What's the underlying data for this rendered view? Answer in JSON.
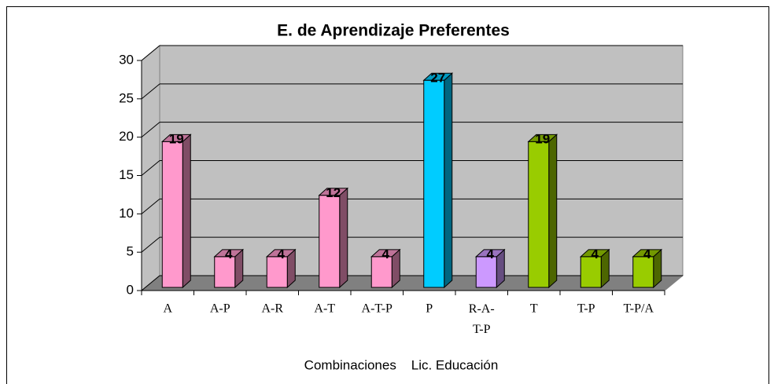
{
  "chart_data": {
    "type": "bar3d",
    "title": "E. de Aprendizaje Preferentes",
    "x_label": "Combinaciones    Lic. Educación",
    "categories": [
      "A",
      "A-P",
      "A-R",
      "A-T",
      "A-T-P",
      "P",
      "R-A-T-P",
      "T",
      "T-P",
      "T-P/A"
    ],
    "values": [
      19,
      4,
      4,
      12,
      4,
      27,
      4,
      19,
      4,
      4
    ],
    "colors": [
      "#ff99cc",
      "#ff99cc",
      "#ff99cc",
      "#ff99cc",
      "#ff99cc",
      "#00ccff",
      "#cc99ff",
      "#99cc00",
      "#99cc00",
      "#99cc00"
    ],
    "ylim": [
      0,
      30
    ],
    "yticks": [
      0,
      5,
      10,
      15,
      20,
      25,
      30
    ],
    "grid": true
  }
}
